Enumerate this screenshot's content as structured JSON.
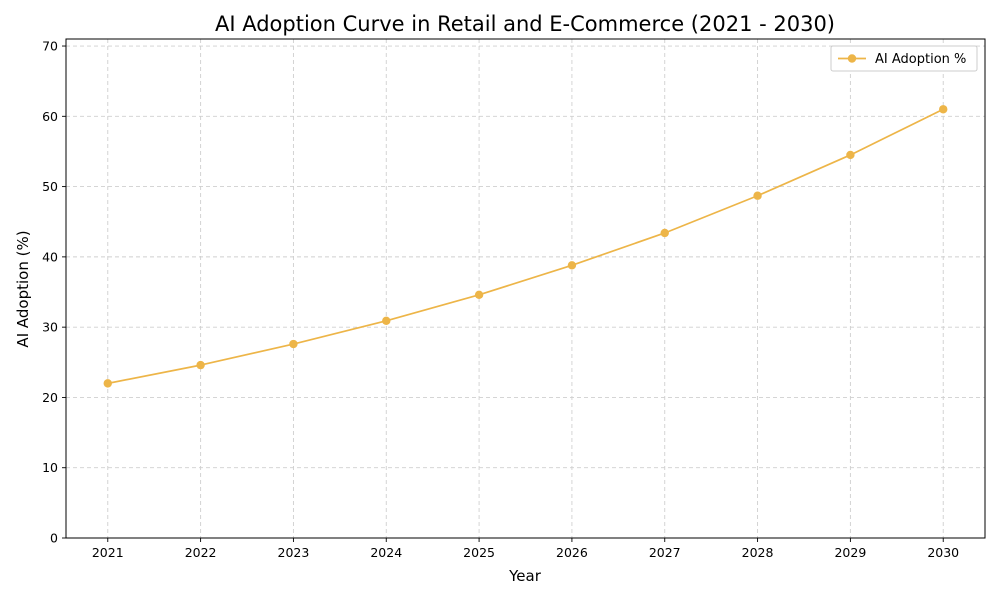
{
  "chart_data": {
    "type": "line",
    "title": "AI Adoption Curve in Retail and E-Commerce (2021 - 2030)",
    "xlabel": "Year",
    "ylabel": "AI Adoption (%)",
    "x": [
      2021,
      2022,
      2023,
      2024,
      2025,
      2026,
      2027,
      2028,
      2029,
      2030
    ],
    "x_tick_labels": [
      "2021",
      "2022",
      "2023",
      "2024",
      "2025",
      "2026",
      "2027",
      "2028",
      "2029",
      "2030"
    ],
    "ylim": [
      0,
      70
    ],
    "y_ticks": [
      0,
      10,
      20,
      30,
      40,
      50,
      60,
      70
    ],
    "grid": true,
    "legend_position": "top-right",
    "series": [
      {
        "name": "AI Adoption %",
        "color": "#EDB548",
        "marker": "circle",
        "values": [
          22.0,
          24.6,
          27.6,
          30.9,
          34.6,
          38.8,
          43.4,
          48.7,
          54.5,
          61.0
        ]
      }
    ]
  }
}
